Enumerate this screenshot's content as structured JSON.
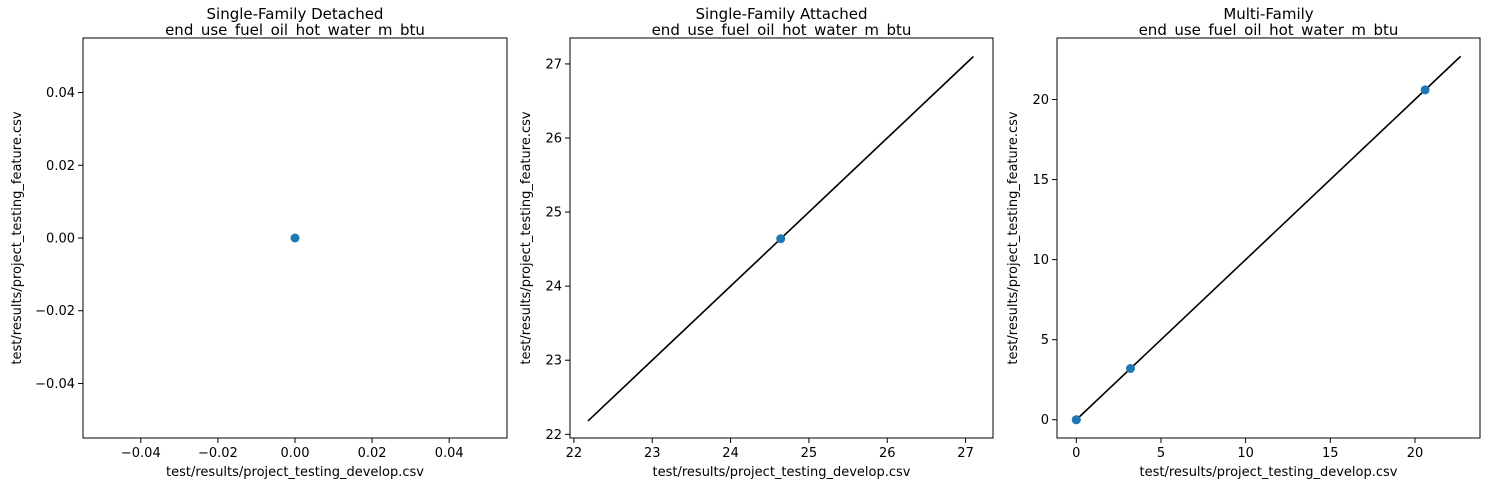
{
  "chart_data": [
    {
      "type": "scatter",
      "title": [
        "Single-Family Detached",
        "end_use_fuel_oil_hot_water_m_btu"
      ],
      "xlabel": "test/results/project_testing_develop.csv",
      "ylabel": "test/results/project_testing_feature.csv",
      "xlim": [
        -0.055,
        0.055
      ],
      "ylim": [
        -0.055,
        0.055
      ],
      "xticks": [
        -0.04,
        -0.02,
        0.0,
        0.02,
        0.04
      ],
      "xtick_labels": [
        "−0.04",
        "−0.02",
        "0.00",
        "0.02",
        "0.04"
      ],
      "yticks": [
        -0.04,
        -0.02,
        0.0,
        0.02,
        0.04
      ],
      "ytick_labels": [
        "−0.04",
        "−0.02",
        "0.00",
        "0.02",
        "0.04"
      ],
      "points": [
        {
          "x": 0.0,
          "y": 0.0
        }
      ],
      "reference_line": null,
      "marker_color": "#1f77b4",
      "line_color": "#000000"
    },
    {
      "type": "scatter",
      "title": [
        "Single-Family Attached",
        "end_use_fuel_oil_hot_water_m_btu"
      ],
      "xlabel": "test/results/project_testing_develop.csv",
      "ylabel": "test/results/project_testing_feature.csv",
      "xlim": [
        21.95,
        27.35
      ],
      "ylim": [
        21.95,
        27.35
      ],
      "xticks": [
        22,
        23,
        24,
        25,
        26,
        27
      ],
      "xtick_labels": [
        "22",
        "23",
        "24",
        "25",
        "26",
        "27"
      ],
      "yticks": [
        22,
        23,
        24,
        25,
        26,
        27
      ],
      "ytick_labels": [
        "22",
        "23",
        "24",
        "25",
        "26",
        "27"
      ],
      "points": [
        {
          "x": 24.64,
          "y": 24.64
        }
      ],
      "reference_line": [
        [
          22.18,
          22.18
        ],
        [
          27.1,
          27.1
        ]
      ],
      "marker_color": "#1f77b4",
      "line_color": "#000000"
    },
    {
      "type": "scatter",
      "title": [
        "Multi-Family",
        "end_use_fuel_oil_hot_water_m_btu"
      ],
      "xlabel": "test/results/project_testing_develop.csv",
      "ylabel": "test/results/project_testing_feature.csv",
      "xlim": [
        -1.14,
        23.84
      ],
      "ylim": [
        -1.14,
        23.84
      ],
      "xticks": [
        0,
        5,
        10,
        15,
        20
      ],
      "xtick_labels": [
        "0",
        "5",
        "10",
        "15",
        "20"
      ],
      "yticks": [
        0,
        5,
        10,
        15,
        20
      ],
      "ytick_labels": [
        "0",
        "5",
        "10",
        "15",
        "20"
      ],
      "points": [
        {
          "x": 0.0,
          "y": 0.0
        },
        {
          "x": 0.0,
          "y": 0.0
        },
        {
          "x": 3.2,
          "y": 3.2
        },
        {
          "x": 20.6,
          "y": 20.6
        }
      ],
      "reference_line": [
        [
          0.0,
          0.0
        ],
        [
          22.7,
          22.7
        ]
      ],
      "marker_color": "#1f77b4",
      "line_color": "#000000"
    }
  ]
}
